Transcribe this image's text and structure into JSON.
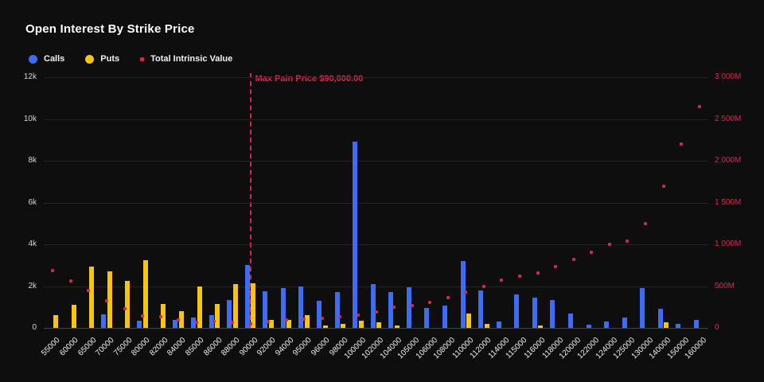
{
  "title": "Open Interest By Strike Price",
  "colors": {
    "background": "#0e0e0e",
    "calls": "#3d6cf5",
    "puts": "#f6c50f",
    "intrinsic": "#d22950",
    "grid": "#232323"
  },
  "legend": [
    {
      "label": "Calls",
      "color": "#3d6cf5",
      "shape": "circle"
    },
    {
      "label": "Puts",
      "color": "#f6c50f",
      "shape": "circle"
    },
    {
      "label": "Total Intrinsic Value",
      "color": "#d22950",
      "shape": "dot"
    }
  ],
  "annotation": {
    "label": "Max Pain Price $90,000.00",
    "strike": "90000",
    "color": "#cf2b52"
  },
  "chart_data": {
    "type": "bar",
    "title": "Open Interest By Strike Price",
    "grid": true,
    "legend_position": "top-left",
    "categories": [
      "55000",
      "60000",
      "65000",
      "70000",
      "75000",
      "80000",
      "82000",
      "84000",
      "85000",
      "86000",
      "88000",
      "90000",
      "92000",
      "94000",
      "95000",
      "96000",
      "98000",
      "100000",
      "102000",
      "104000",
      "105000",
      "106000",
      "108000",
      "110000",
      "112000",
      "114000",
      "115000",
      "116000",
      "118000",
      "120000",
      "122000",
      "124000",
      "125000",
      "130000",
      "140000",
      "150000",
      "160000"
    ],
    "series": [
      {
        "name": "Calls",
        "type": "bar",
        "axis": "left",
        "color": "#3d6cf5",
        "values": [
          0,
          0,
          0,
          650,
          0,
          350,
          0,
          380,
          500,
          600,
          1350,
          3000,
          1750,
          1900,
          2000,
          1300,
          1700,
          8900,
          2100,
          1700,
          1950,
          950,
          1050,
          3200,
          1800,
          300,
          1600,
          1450,
          1350,
          700,
          150,
          300,
          500,
          1900,
          900,
          200,
          400
        ]
      },
      {
        "name": "Puts",
        "type": "bar",
        "axis": "left",
        "color": "#f6c50f",
        "values": [
          600,
          1100,
          2950,
          2700,
          2250,
          3250,
          1150,
          800,
          2000,
          1150,
          2100,
          2150,
          400,
          400,
          600,
          100,
          200,
          350,
          250,
          100,
          0,
          0,
          0,
          700,
          200,
          0,
          0,
          100,
          0,
          0,
          0,
          0,
          0,
          0,
          270,
          0,
          0
        ]
      },
      {
        "name": "Total Intrinsic Value",
        "type": "scatter",
        "axis": "right",
        "unit": "M",
        "color": "#d22950",
        "values": [
          690,
          560,
          450,
          320,
          230,
          140,
          130,
          100,
          70,
          75,
          65,
          50,
          80,
          95,
          105,
          115,
          135,
          150,
          190,
          250,
          270,
          305,
          360,
          430,
          500,
          570,
          620,
          660,
          730,
          820,
          905,
          1000,
          1040,
          1250,
          1700,
          2200,
          2650
        ]
      }
    ],
    "left_axis": {
      "min": 0,
      "max": 12000,
      "ticks": [
        "0",
        "2k",
        "4k",
        "6k",
        "8k",
        "10k",
        "12k"
      ]
    },
    "right_axis": {
      "min": 0,
      "max": 3000,
      "ticks": [
        "0",
        "500M",
        "1 000M",
        "1 500M",
        "2 000M",
        "2 500M",
        "3 000M"
      ]
    }
  }
}
